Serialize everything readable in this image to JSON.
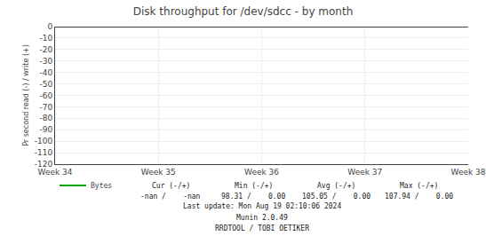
{
  "chart_data": {
    "type": "line",
    "title": "Disk throughput for /dev/sdcc - by month",
    "y_label": "Pr second read (-) / write (+)",
    "categories": [
      "Week 34",
      "Week 35",
      "Week 36",
      "Week 37",
      "Week 38"
    ],
    "series": [
      {
        "name": "Bytes",
        "color": "#00aa00",
        "values": [
          null,
          null,
          null,
          null,
          null
        ]
      }
    ],
    "ylim": [
      -120,
      0
    ],
    "yticks": [
      0,
      -10,
      -20,
      -30,
      -40,
      -50,
      -60,
      -70,
      -80,
      -90,
      -100,
      -110,
      -120
    ],
    "grid": true,
    "legend": "bottom left",
    "annotations": [
      [
        "Cur (-/+)",
        "Min (-/+)",
        "Avg (-/+)",
        "Max (-/+)"
      ],
      [
        "-nan /    -nan",
        "98.31 /    0.00",
        "105.05 /    0.00",
        "107.94 /    0.00"
      ],
      [
        "Last update: Mon Aug 19 02:10:06 2024"
      ],
      [
        "Munin 2.0.49"
      ],
      [
        "RRDTOOL / TOBI OETIKER"
      ]
    ]
  }
}
